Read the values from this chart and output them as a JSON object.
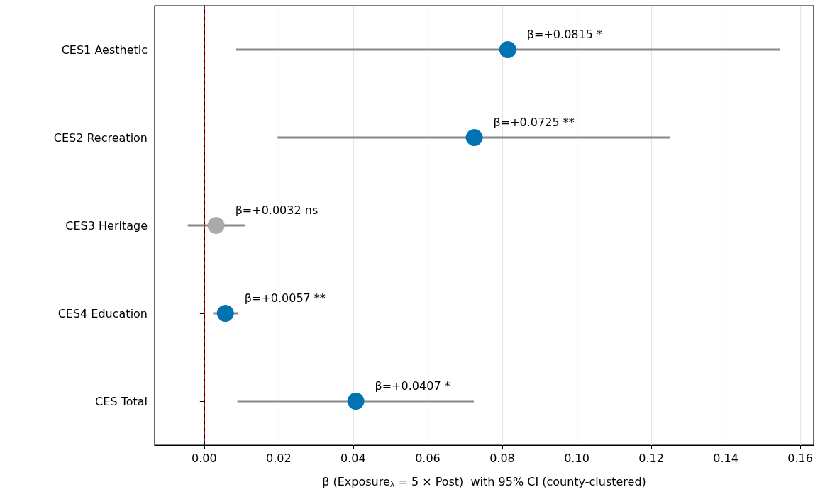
{
  "chart_data": {
    "type": "scatter",
    "orientation": "horizontal",
    "xlabel": "β (Exposure$_{λ}$ = 5 × Post)  with 95% CI (county-clustered)",
    "categories": [
      "CES1 Aesthetic",
      "CES2 Recreation",
      "CES3 Heritage",
      "CES4 Education",
      "CES Total"
    ],
    "values": [
      0.0815,
      0.0725,
      0.0032,
      0.0057,
      0.0407
    ],
    "errors": [
      [
        0.0086,
        0.1545
      ],
      [
        0.0197,
        0.1251
      ],
      [
        -0.0044,
        0.011
      ],
      [
        0.0024,
        0.0092
      ],
      [
        0.0089,
        0.0724
      ]
    ],
    "value_labels": [
      "β=+0.0815 *",
      "β=+0.0725 **",
      "β=+0.0032 ns",
      "β=+0.0057 **",
      "β=+0.0407 *"
    ],
    "colors": [
      "#0173b2",
      "#0173b2",
      "#aaaaaa",
      "#0173b2",
      "#0173b2"
    ],
    "marker": "circle",
    "xlim": [
      -0.0133,
      0.1636
    ],
    "xticks": [
      {
        "value": 0,
        "label": "0.00"
      },
      {
        "value": 0.02,
        "label": "0.02"
      },
      {
        "value": 0.04,
        "label": "0.04"
      },
      {
        "value": 0.06,
        "label": "0.06"
      },
      {
        "value": 0.08,
        "label": "0.08"
      },
      {
        "value": 0.1,
        "label": "0.10"
      },
      {
        "value": 0.12,
        "label": "0.12"
      },
      {
        "value": 0.14,
        "label": "0.14"
      },
      {
        "value": 0.16,
        "label": "0.16"
      }
    ],
    "grid": "x",
    "ref_lines": [
      {
        "axis": "x",
        "value": 0,
        "color": "#ff0000",
        "line_style": "dashed"
      }
    ]
  }
}
